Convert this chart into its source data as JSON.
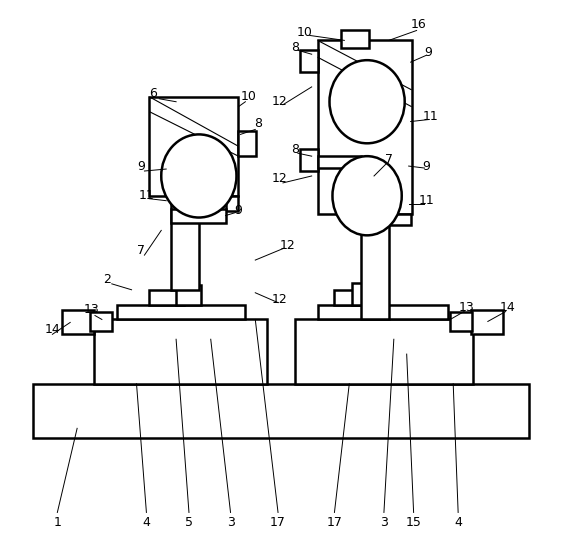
{
  "bg_color": "#ffffff",
  "line_color": "#000000",
  "lw": 1.8,
  "tlw": 0.8,
  "fig_width": 5.62,
  "fig_height": 5.36,
  "dpi": 100
}
